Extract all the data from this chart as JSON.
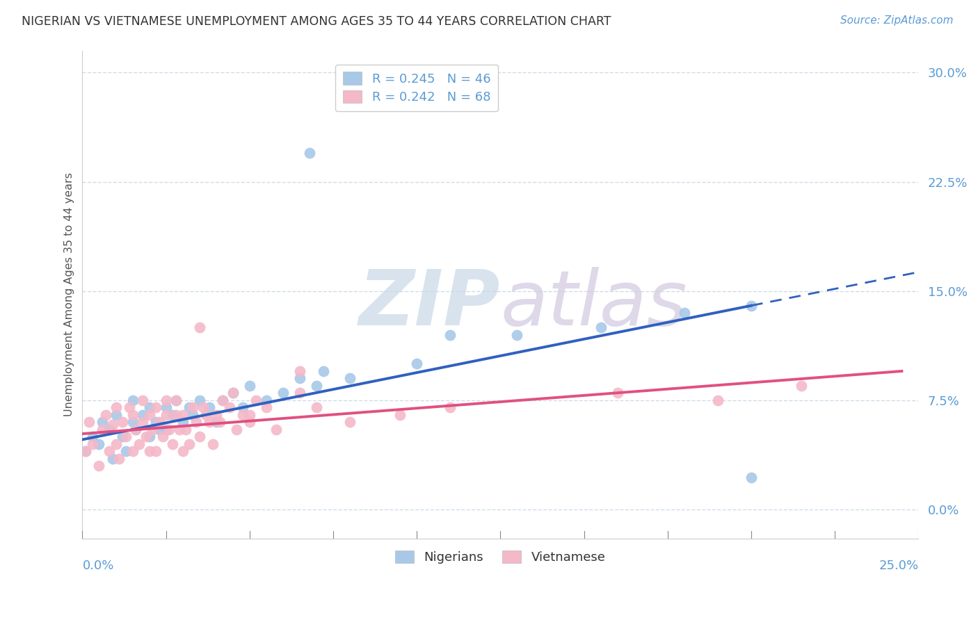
{
  "title": "NIGERIAN VS VIETNAMESE UNEMPLOYMENT AMONG AGES 35 TO 44 YEARS CORRELATION CHART",
  "source": "Source: ZipAtlas.com",
  "xmin": 0.0,
  "xmax": 0.25,
  "ymin": -0.02,
  "ymax": 0.315,
  "yticks": [
    0.0,
    0.075,
    0.15,
    0.225,
    0.3
  ],
  "ytick_labels": [
    "0.0%",
    "7.5%",
    "15.0%",
    "22.5%",
    "30.0%"
  ],
  "blue_scatter_color": "#a8c8e8",
  "pink_scatter_color": "#f4b8c8",
  "blue_line_color": "#3060c0",
  "pink_line_color": "#e05080",
  "watermark_zip_color": "#c8d8e8",
  "watermark_atlas_color": "#d0c8e0",
  "bg_color": "#ffffff",
  "grid_color": "#d0dce8",
  "spine_color": "#cccccc",
  "title_color": "#333333",
  "source_color": "#5b9bd5",
  "ytick_color": "#5b9bd5",
  "xtick_color": "#5b9bd5",
  "ylabel_color": "#555555",
  "legend_label_color": "#5b9bd5",
  "bottom_legend_color": "#333333",
  "nigerian_x": [
    0.001,
    0.003,
    0.005,
    0.006,
    0.008,
    0.009,
    0.01,
    0.012,
    0.013,
    0.015,
    0.015,
    0.016,
    0.018,
    0.02,
    0.02,
    0.022,
    0.023,
    0.025,
    0.025,
    0.027,
    0.028,
    0.03,
    0.032,
    0.033,
    0.035,
    0.038,
    0.04,
    0.042,
    0.045,
    0.048,
    0.05,
    0.055,
    0.06,
    0.065,
    0.07,
    0.072,
    0.08,
    0.1,
    0.11,
    0.13,
    0.155,
    0.18,
    0.2,
    0.068,
    0.1,
    0.2
  ],
  "nigerian_y": [
    0.04,
    0.05,
    0.045,
    0.06,
    0.055,
    0.035,
    0.065,
    0.05,
    0.04,
    0.06,
    0.075,
    0.055,
    0.065,
    0.05,
    0.07,
    0.06,
    0.055,
    0.07,
    0.055,
    0.065,
    0.075,
    0.06,
    0.07,
    0.065,
    0.075,
    0.07,
    0.06,
    0.075,
    0.08,
    0.07,
    0.085,
    0.075,
    0.08,
    0.09,
    0.085,
    0.095,
    0.09,
    0.1,
    0.12,
    0.12,
    0.125,
    0.135,
    0.14,
    0.245,
    0.29,
    0.022
  ],
  "vietnamese_x": [
    0.001,
    0.002,
    0.003,
    0.005,
    0.006,
    0.007,
    0.008,
    0.009,
    0.01,
    0.01,
    0.011,
    0.012,
    0.013,
    0.014,
    0.015,
    0.015,
    0.016,
    0.017,
    0.018,
    0.018,
    0.019,
    0.02,
    0.02,
    0.021,
    0.022,
    0.022,
    0.023,
    0.024,
    0.025,
    0.025,
    0.026,
    0.027,
    0.028,
    0.028,
    0.029,
    0.03,
    0.03,
    0.031,
    0.032,
    0.033,
    0.034,
    0.035,
    0.036,
    0.037,
    0.038,
    0.039,
    0.04,
    0.041,
    0.042,
    0.044,
    0.046,
    0.048,
    0.05,
    0.052,
    0.055,
    0.058,
    0.065,
    0.07,
    0.08,
    0.095,
    0.11,
    0.16,
    0.19,
    0.215,
    0.035,
    0.045,
    0.05,
    0.065
  ],
  "vietnamese_y": [
    0.04,
    0.06,
    0.045,
    0.03,
    0.055,
    0.065,
    0.04,
    0.058,
    0.045,
    0.07,
    0.035,
    0.06,
    0.05,
    0.07,
    0.04,
    0.065,
    0.055,
    0.045,
    0.06,
    0.075,
    0.05,
    0.04,
    0.065,
    0.055,
    0.04,
    0.07,
    0.06,
    0.05,
    0.065,
    0.075,
    0.055,
    0.045,
    0.065,
    0.075,
    0.055,
    0.04,
    0.065,
    0.055,
    0.045,
    0.07,
    0.06,
    0.05,
    0.07,
    0.065,
    0.06,
    0.045,
    0.065,
    0.06,
    0.075,
    0.07,
    0.055,
    0.065,
    0.06,
    0.075,
    0.07,
    0.055,
    0.08,
    0.07,
    0.06,
    0.065,
    0.07,
    0.08,
    0.075,
    0.085,
    0.125,
    0.08,
    0.065,
    0.095
  ],
  "blue_line_x0": 0.0,
  "blue_line_y0": 0.048,
  "blue_line_x1": 0.2,
  "blue_line_y1": 0.14,
  "blue_line_dash_x1": 0.25,
  "blue_line_dash_y1": 0.163,
  "pink_line_x0": 0.0,
  "pink_line_y0": 0.052,
  "pink_line_x1": 0.245,
  "pink_line_y1": 0.095
}
